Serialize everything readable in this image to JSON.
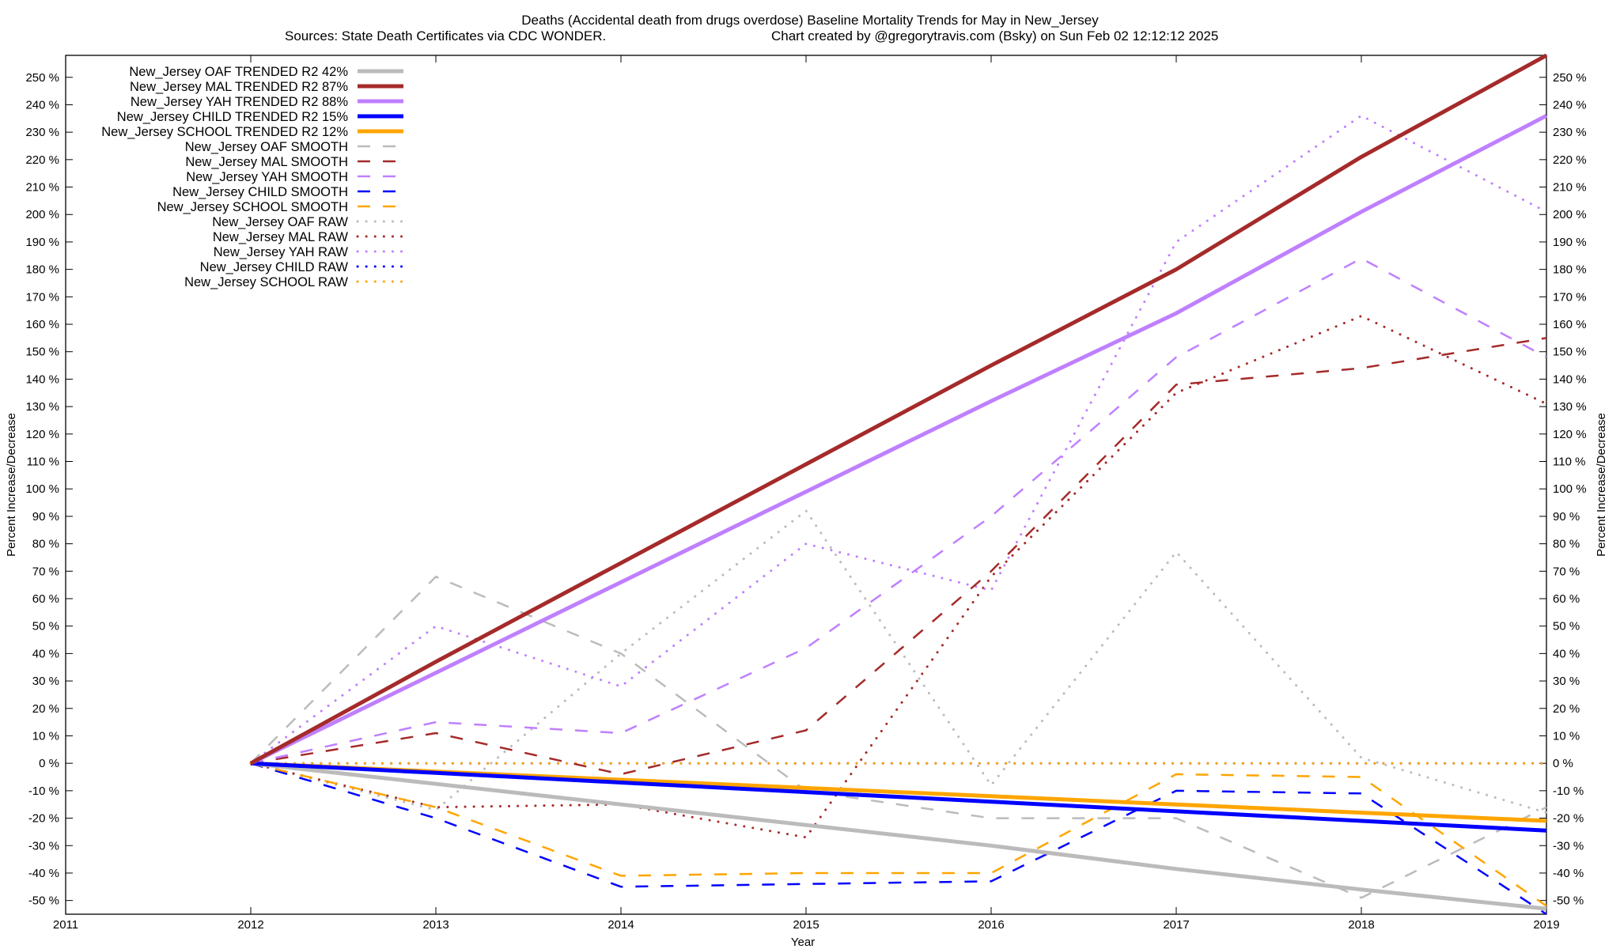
{
  "chart_data": {
    "type": "line",
    "title_line1": "Deaths (Accidental death from drugs overdose)  Baseline Mortality Trends for May in New_Jersey",
    "title_line2_left": "Sources: State Death Certificates via CDC WONDER.",
    "title_line2_right": "Chart created by @gregorytravis.com (Bsky) on Sun Feb 02 12:12:12 2025",
    "xlabel": "Year",
    "ylabel": "Percent Increase/Decrease",
    "y2label": "Percent Increase/Decrease",
    "xlim": [
      2011,
      2019
    ],
    "ylim": [
      -55,
      258
    ],
    "x_ticks": [
      "2011",
      "2012",
      "2013",
      "2014",
      "2015",
      "2016",
      "2017",
      "2018",
      "2019"
    ],
    "y_ticks": [
      -50,
      -40,
      -30,
      -20,
      -10,
      0,
      10,
      20,
      30,
      40,
      50,
      60,
      70,
      80,
      90,
      100,
      110,
      120,
      130,
      140,
      150,
      160,
      170,
      180,
      190,
      200,
      210,
      220,
      230,
      240,
      250
    ],
    "y_tick_suffix": " %",
    "grid": false,
    "legend_position": "top-left",
    "x": [
      2012,
      2013,
      2014,
      2015,
      2016,
      2017,
      2018,
      2019
    ],
    "series": [
      {
        "name": "New_Jersey OAF TRENDED R2  42%",
        "style": "solid",
        "color": "#bbbbbb",
        "values": [
          0,
          -7.5,
          -15,
          -22.5,
          -30,
          -38.5,
          -46,
          -53
        ]
      },
      {
        "name": "New_Jersey MAL TRENDED R2  87%",
        "style": "solid",
        "color": "#a52a2a",
        "values": [
          0,
          37,
          73,
          109,
          145,
          180,
          221,
          258
        ]
      },
      {
        "name": "New_Jersey YAH TRENDED R2  88%",
        "style": "solid",
        "color": "#bf80ff",
        "values": [
          0,
          33,
          66,
          99,
          132,
          164,
          201,
          236
        ]
      },
      {
        "name": "New_Jersey CHILD TRENDED R2  15%",
        "style": "solid",
        "color": "#0000ff",
        "values": [
          0,
          -3.5,
          -7,
          -10.5,
          -14,
          -17.5,
          -21,
          -24.5
        ]
      },
      {
        "name": "New_Jersey SCHOOL TRENDED R2  12%",
        "style": "solid",
        "color": "#ffa500",
        "values": [
          0,
          -3,
          -6,
          -9,
          -12,
          -15,
          -18,
          -21
        ]
      },
      {
        "name": "New_Jersey OAF SMOOTH",
        "style": "dash",
        "color": "#bbbbbb",
        "values": [
          0,
          68,
          40,
          -10,
          -20,
          -20,
          -49,
          -16
        ]
      },
      {
        "name": "New_Jersey MAL SMOOTH",
        "style": "dash",
        "color": "#a52a2a",
        "values": [
          0,
          11,
          -4,
          12,
          70,
          138,
          144,
          155
        ]
      },
      {
        "name": "New_Jersey YAH SMOOTH",
        "style": "dash",
        "color": "#bf80ff",
        "values": [
          0,
          15,
          11,
          42,
          90,
          148,
          184,
          148
        ]
      },
      {
        "name": "New_Jersey CHILD SMOOTH",
        "style": "dash",
        "color": "#0000ff",
        "values": [
          0,
          -20,
          -45,
          -44,
          -43,
          -10,
          -11,
          -55
        ]
      },
      {
        "name": "New_Jersey SCHOOL SMOOTH",
        "style": "dash",
        "color": "#ffa500",
        "values": [
          0,
          -16,
          -41,
          -40,
          -40,
          -4,
          -5,
          -52
        ]
      },
      {
        "name": "New_Jersey OAF RAW",
        "style": "dot",
        "color": "#bbbbbb",
        "values": [
          0,
          -17,
          40,
          92,
          -8,
          77,
          2,
          -18
        ]
      },
      {
        "name": "New_Jersey MAL RAW",
        "style": "dot",
        "color": "#a52a2a",
        "values": [
          0,
          -16,
          -15,
          -27,
          68,
          135,
          163,
          131
        ]
      },
      {
        "name": "New_Jersey YAH RAW",
        "style": "dot",
        "color": "#bf80ff",
        "values": [
          0,
          50,
          28,
          80,
          63,
          190,
          236,
          201
        ]
      },
      {
        "name": "New_Jersey CHILD RAW",
        "style": "dot",
        "color": "#0000ff",
        "values": [
          0,
          0,
          0,
          0,
          0,
          0,
          0,
          0
        ]
      },
      {
        "name": "New_Jersey SCHOOL RAW",
        "style": "dot",
        "color": "#ffa500",
        "values": [
          0,
          0,
          0,
          0,
          0,
          0,
          0,
          0
        ]
      }
    ]
  }
}
